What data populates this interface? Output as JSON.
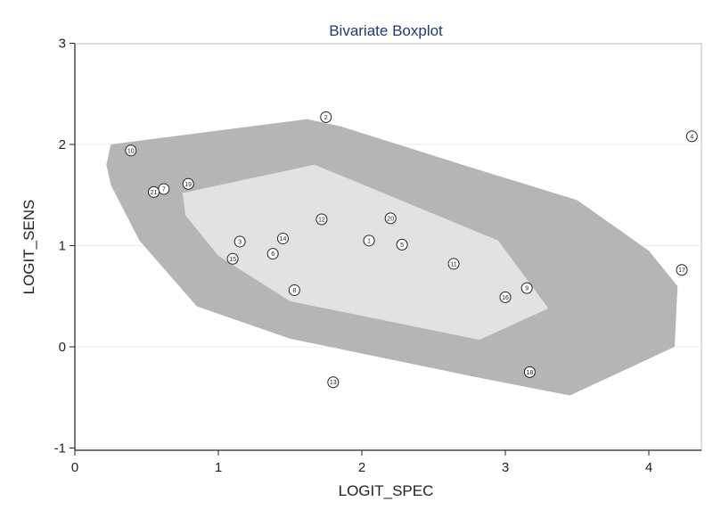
{
  "chart_data": {
    "type": "scatter",
    "title": "Bivariate Boxplot",
    "xlabel": "LOGIT_SPEC",
    "ylabel": "LOGIT_SENS",
    "xlim": [
      0,
      4.35
    ],
    "ylim": [
      -1,
      3
    ],
    "xticks": [
      0,
      1,
      2,
      3,
      4
    ],
    "yticks": [
      -1,
      0,
      1,
      2,
      3
    ],
    "grid": true,
    "colors": {
      "outer_region": "#b5b5b5",
      "inner_region": "#e2e2e2",
      "title": "#1f3b73",
      "points": "#222222"
    },
    "outer_region": [
      [
        0.25,
        2.0
      ],
      [
        1.62,
        2.25
      ],
      [
        1.85,
        2.18
      ],
      [
        2.7,
        1.8
      ],
      [
        3.5,
        1.45
      ],
      [
        4.0,
        0.95
      ],
      [
        4.2,
        0.6
      ],
      [
        4.18,
        0.0
      ],
      [
        3.45,
        -0.48
      ],
      [
        2.8,
        -0.3
      ],
      [
        1.5,
        0.08
      ],
      [
        0.85,
        0.4
      ],
      [
        0.45,
        1.05
      ],
      [
        0.25,
        1.6
      ],
      [
        0.22,
        1.8
      ]
    ],
    "inner_region": [
      [
        0.75,
        1.52
      ],
      [
        1.67,
        1.8
      ],
      [
        2.95,
        1.05
      ],
      [
        3.3,
        0.38
      ],
      [
        2.82,
        0.07
      ],
      [
        1.5,
        0.45
      ],
      [
        1.0,
        0.9
      ],
      [
        0.77,
        1.3
      ]
    ],
    "points": [
      {
        "label": "1",
        "x": 2.05,
        "y": 1.05
      },
      {
        "label": "2",
        "x": 1.75,
        "y": 2.27
      },
      {
        "label": "3",
        "x": 1.15,
        "y": 1.04
      },
      {
        "label": "4",
        "x": 4.3,
        "y": 2.08
      },
      {
        "label": "5",
        "x": 2.28,
        "y": 1.01
      },
      {
        "label": "6",
        "x": 1.38,
        "y": 0.92
      },
      {
        "label": "7",
        "x": 0.62,
        "y": 1.56
      },
      {
        "label": "8",
        "x": 1.53,
        "y": 0.56
      },
      {
        "label": "9",
        "x": 3.15,
        "y": 0.58
      },
      {
        "label": "10",
        "x": 0.39,
        "y": 1.94
      },
      {
        "label": "11",
        "x": 2.64,
        "y": 0.82
      },
      {
        "label": "12",
        "x": 1.72,
        "y": 1.26
      },
      {
        "label": "13",
        "x": 1.8,
        "y": -0.35
      },
      {
        "label": "14",
        "x": 1.45,
        "y": 1.07
      },
      {
        "label": "15",
        "x": 1.1,
        "y": 0.87
      },
      {
        "label": "16",
        "x": 3.0,
        "y": 0.49
      },
      {
        "label": "17",
        "x": 4.23,
        "y": 0.76
      },
      {
        "label": "18",
        "x": 3.17,
        "y": -0.25
      },
      {
        "label": "19",
        "x": 0.79,
        "y": 1.61
      },
      {
        "label": "20",
        "x": 2.2,
        "y": 1.27
      },
      {
        "label": "21",
        "x": 0.55,
        "y": 1.53
      }
    ]
  }
}
